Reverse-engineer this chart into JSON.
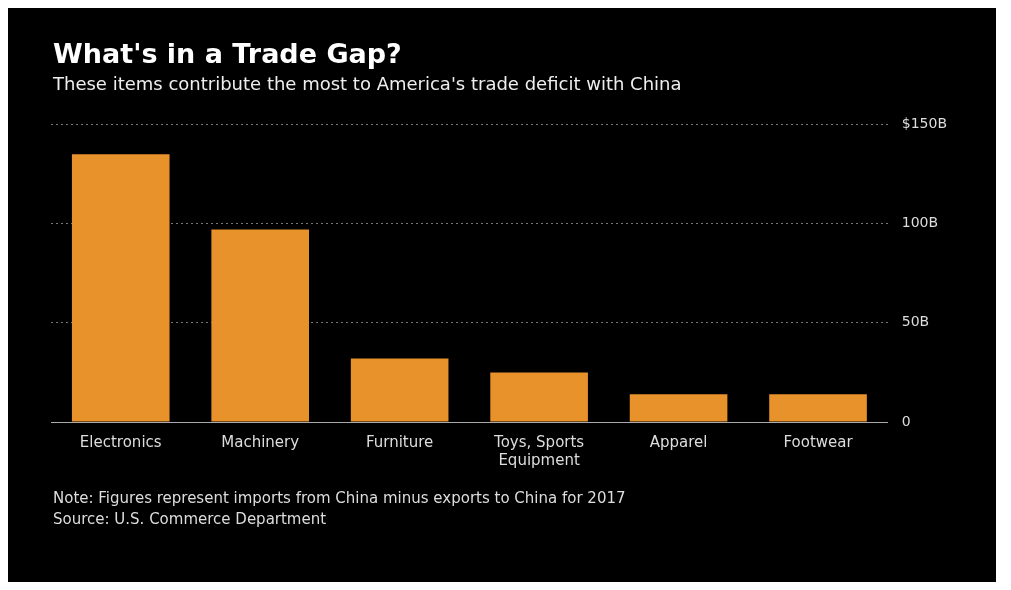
{
  "chart_data": {
    "type": "bar",
    "title": "What's in a Trade Gap?",
    "subtitle": "These items contribute the most to America's trade deficit with China",
    "categories": [
      "Electronics",
      "Machinery",
      "Furniture",
      "Toys, Sports Equipment",
      "Apparel",
      "Footwear"
    ],
    "values": [
      135,
      97,
      32,
      25,
      14,
      14
    ],
    "color": "#e8922b",
    "ylim": [
      0,
      150
    ],
    "yticks": [
      {
        "value": 0,
        "label": "0"
      },
      {
        "value": 50,
        "label": "50B"
      },
      {
        "value": 100,
        "label": "100B"
      },
      {
        "value": 150,
        "label": "$150B"
      }
    ],
    "grid": "y",
    "annotations": [
      "Note: Figures represent imports from China minus exports to China for 2017",
      "Source: U.S. Commerce Department"
    ]
  }
}
